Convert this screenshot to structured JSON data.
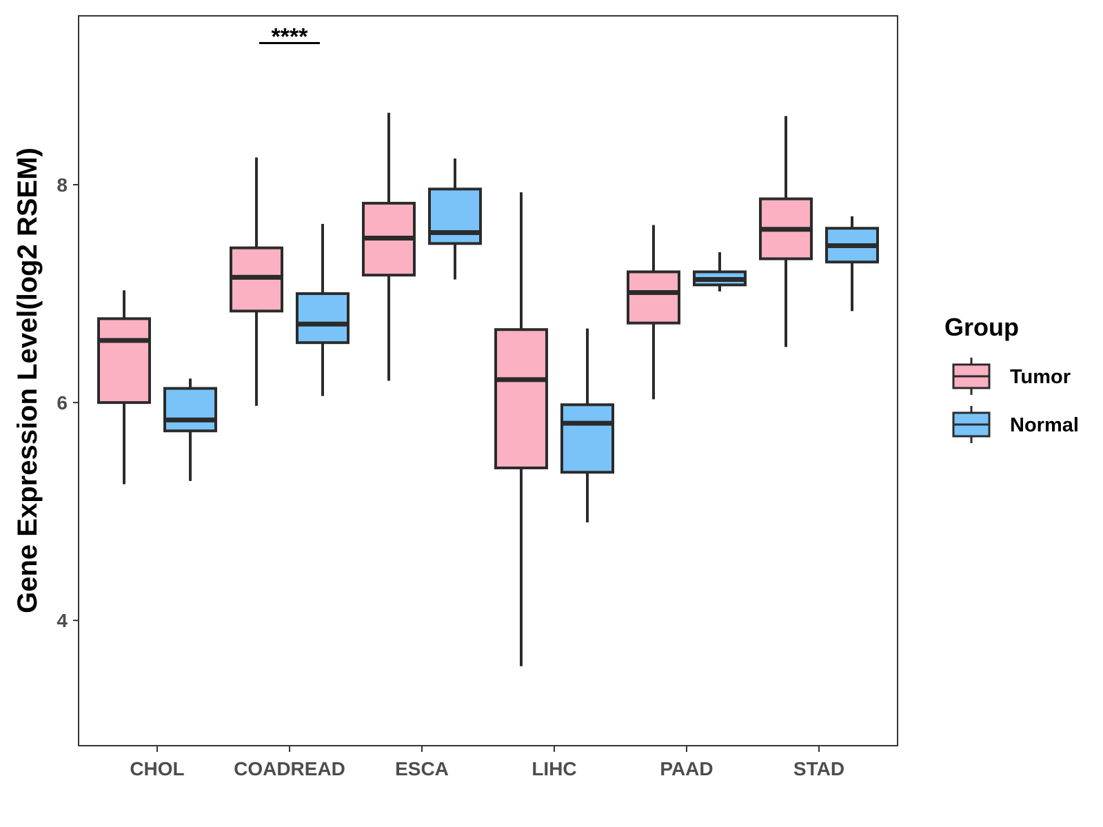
{
  "chart_data": {
    "type": "boxplot",
    "title": "",
    "xlabel": "",
    "ylabel": "Gene Expression Level(log2 RSEM)",
    "ylim": [
      2.85,
      9.55
    ],
    "yticks": [
      4,
      6,
      8
    ],
    "categories": [
      "CHOL",
      "COADREAD",
      "ESCA",
      "LIHC",
      "PAAD",
      "STAD"
    ],
    "legend": {
      "title": "Group",
      "placement": "right",
      "items": [
        {
          "name": "Tumor",
          "color": "#FBB1C2"
        },
        {
          "name": "Normal",
          "color": "#79C3F9"
        }
      ]
    },
    "series": [
      {
        "name": "Tumor",
        "color": "#FBB1C2",
        "boxes": [
          {
            "category": "CHOL",
            "min": 5.25,
            "q1": 6.0,
            "median": 6.57,
            "q3": 6.77,
            "max": 7.03
          },
          {
            "category": "COADREAD",
            "min": 5.97,
            "q1": 6.84,
            "median": 7.15,
            "q3": 7.42,
            "max": 8.25
          },
          {
            "category": "ESCA",
            "min": 6.2,
            "q1": 7.17,
            "median": 7.51,
            "q3": 7.83,
            "max": 8.66
          },
          {
            "category": "LIHC",
            "min": 3.58,
            "q1": 5.4,
            "median": 6.21,
            "q3": 6.67,
            "max": 7.93
          },
          {
            "category": "PAAD",
            "min": 6.03,
            "q1": 6.73,
            "median": 7.01,
            "q3": 7.2,
            "max": 7.63
          },
          {
            "category": "STAD",
            "min": 6.51,
            "q1": 7.32,
            "median": 7.59,
            "q3": 7.87,
            "max": 8.63
          }
        ]
      },
      {
        "name": "Normal",
        "color": "#79C3F9",
        "boxes": [
          {
            "category": "CHOL",
            "min": 5.28,
            "q1": 5.74,
            "median": 5.84,
            "q3": 6.13,
            "max": 6.22
          },
          {
            "category": "COADREAD",
            "min": 6.06,
            "q1": 6.55,
            "median": 6.72,
            "q3": 7.0,
            "max": 7.64
          },
          {
            "category": "ESCA",
            "min": 7.13,
            "q1": 7.46,
            "median": 7.56,
            "q3": 7.96,
            "max": 8.24
          },
          {
            "category": "LIHC",
            "min": 4.9,
            "q1": 5.36,
            "median": 5.81,
            "q3": 5.98,
            "max": 6.68
          },
          {
            "category": "PAAD",
            "min": 7.02,
            "q1": 7.08,
            "median": 7.13,
            "q3": 7.2,
            "max": 7.38
          },
          {
            "category": "STAD",
            "min": 6.84,
            "q1": 7.29,
            "median": 7.44,
            "q3": 7.6,
            "max": 7.71
          }
        ]
      }
    ],
    "annotations": [
      {
        "category": "COADREAD",
        "label": "****",
        "y": 9.3
      }
    ]
  }
}
